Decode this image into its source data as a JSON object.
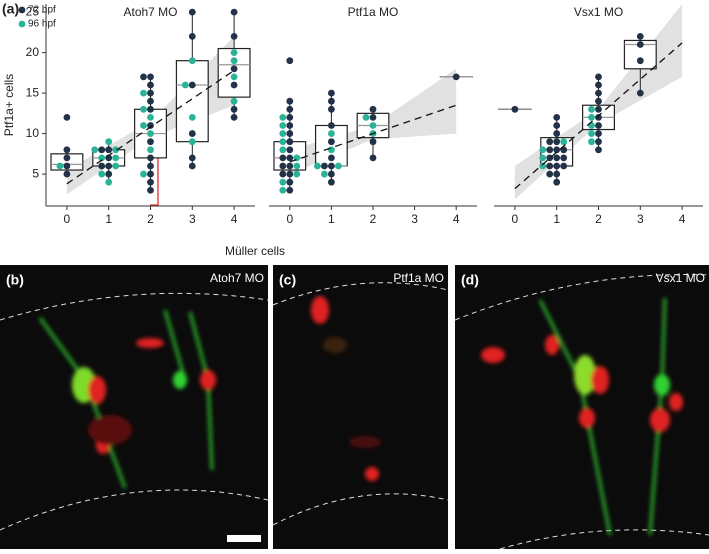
{
  "panel_label_a": "(a)",
  "chart_data": [
    {
      "type": "box",
      "title": "Atoh7 MO",
      "x_label": "Müller cells",
      "y_label": "Ptf1a+ cells",
      "xlim": [
        -0.5,
        4.5
      ],
      "xticks": [
        0,
        1,
        2,
        3,
        4
      ],
      "ylim": [
        1.8,
        26
      ],
      "yticks": [
        5,
        10,
        15,
        20,
        25
      ],
      "legend": "top-left",
      "boxes": [
        {
          "x": 0,
          "whislo": 5,
          "q1": 5.5,
          "median": 6.2,
          "q3": 7.5,
          "whishi": 8
        },
        {
          "x": 1,
          "whislo": 4,
          "q1": 6,
          "median": 7,
          "q3": 8,
          "whishi": 9
        },
        {
          "x": 2,
          "whislo": 3,
          "q1": 7,
          "median": 10,
          "q3": 13,
          "whishi": 17
        },
        {
          "x": 3,
          "whislo": 6,
          "q1": 9,
          "median": 16,
          "q3": 19,
          "whishi": 25
        },
        {
          "x": 4,
          "whislo": 12,
          "q1": 14.5,
          "median": 18.5,
          "q3": 20.5,
          "whishi": 25
        }
      ],
      "series": [
        {
          "name": "72 hpf",
          "color": "#223348",
          "x": [
            0,
            0,
            0,
            0,
            0,
            1,
            1,
            1,
            1,
            1,
            1,
            2,
            2,
            2,
            2,
            2,
            2,
            2,
            2,
            2,
            2,
            2,
            2,
            2,
            3,
            3,
            3,
            3,
            3,
            3,
            4,
            4,
            4,
            4,
            4,
            4
          ],
          "values": [
            5,
            6,
            7,
            12,
            8,
            5,
            6,
            6,
            7,
            8,
            8,
            3,
            4,
            5,
            6,
            7,
            9,
            11,
            13,
            14,
            15,
            16,
            17,
            17,
            6,
            7,
            25,
            22,
            16,
            10,
            12,
            13,
            16,
            25,
            22,
            18
          ]
        },
        {
          "name": "96 hpf",
          "color": "#2bb39a",
          "x": [
            0,
            1,
            1,
            1,
            1,
            1,
            1,
            1,
            1,
            2,
            2,
            2,
            2,
            2,
            2,
            2,
            3,
            3,
            3,
            3,
            4,
            4,
            4,
            4
          ],
          "values": [
            6,
            4,
            5,
            6,
            7,
            7,
            8,
            8,
            9,
            5,
            8,
            10,
            11,
            12,
            13,
            15,
            9,
            16,
            12,
            19,
            14,
            20,
            19,
            17
          ]
        }
      ],
      "fit": {
        "x": [
          0,
          4
        ],
        "values": [
          3.8,
          17.8
        ]
      },
      "band": {
        "x": [
          0,
          2,
          4
        ],
        "lower": [
          2.5,
          9.5,
          13.5
        ],
        "upper": [
          5.5,
          11.5,
          22
        ]
      }
    },
    {
      "type": "box",
      "title": "Ptf1a MO",
      "xlim": [
        -0.5,
        4.5
      ],
      "xticks": [
        0,
        1,
        2,
        3,
        4
      ],
      "ylim": [
        1.8,
        26
      ],
      "boxes": [
        {
          "x": 0,
          "whislo": 3,
          "q1": 5.5,
          "median": 7,
          "q3": 9,
          "whishi": 14
        },
        {
          "x": 1,
          "whislo": 4,
          "q1": 6,
          "median": 6,
          "q3": 11,
          "whishi": 15
        },
        {
          "x": 2,
          "whislo": 7,
          "q1": 9.5,
          "median": 11,
          "q3": 12.5,
          "whishi": 13
        },
        {
          "x": 4,
          "whislo": 17,
          "q1": 17,
          "median": 17,
          "q3": 17,
          "whishi": 17
        }
      ],
      "series": [
        {
          "color": "#223348",
          "x": [
            0,
            0,
            0,
            0,
            0,
            0,
            0,
            0,
            0,
            0,
            0,
            0,
            0,
            0,
            0,
            0,
            1,
            1,
            1,
            1,
            1,
            1,
            1,
            1,
            1,
            1,
            2,
            2,
            2,
            2,
            4
          ],
          "values": [
            3,
            4,
            5,
            5,
            6,
            6,
            7,
            7,
            8,
            9,
            10,
            11,
            12,
            13,
            14,
            19,
            4,
            5,
            6,
            6,
            7,
            9,
            11,
            13,
            14,
            15,
            7,
            9,
            12,
            13,
            17
          ]
        },
        {
          "color": "#2bb39a",
          "x": [
            0,
            0,
            0,
            0,
            0,
            0,
            0,
            0,
            0,
            0,
            1,
            1,
            1,
            1,
            1,
            2,
            2,
            2
          ],
          "values": [
            3,
            4,
            5,
            6,
            7,
            8,
            9,
            10,
            11,
            12,
            5,
            6,
            6,
            8,
            10,
            10,
            11,
            12
          ]
        }
      ],
      "fit": {
        "x": [
          0,
          4
        ],
        "values": [
          6.5,
          13.5
        ]
      },
      "band": {
        "x": [
          0,
          2,
          4
        ],
        "lower": [
          5,
          9.3,
          10
        ],
        "upper": [
          8,
          11,
          18
        ]
      }
    },
    {
      "type": "box",
      "title": "Vsx1 MO",
      "xlim": [
        -0.5,
        4.5
      ],
      "xticks": [
        0,
        1,
        2,
        3,
        4
      ],
      "ylim": [
        1.8,
        26
      ],
      "boxes": [
        {
          "x": 0,
          "whislo": 13,
          "q1": 13,
          "median": 13,
          "q3": 13,
          "whishi": 13
        },
        {
          "x": 1,
          "whislo": 4,
          "q1": 6,
          "median": 8,
          "q3": 9.5,
          "whishi": 12
        },
        {
          "x": 2,
          "whislo": 8,
          "q1": 10.5,
          "median": 12,
          "q3": 13.5,
          "whishi": 17
        },
        {
          "x": 3,
          "whislo": 15,
          "q1": 18,
          "median": 21,
          "q3": 21.5,
          "whishi": 22
        }
      ],
      "series": [
        {
          "color": "#223348",
          "x": [
            0,
            1,
            1,
            1,
            1,
            1,
            1,
            1,
            1,
            1,
            1,
            1,
            1,
            1,
            1,
            1,
            1,
            1,
            2,
            2,
            2,
            2,
            2,
            2,
            2,
            2,
            2,
            2,
            3,
            3,
            3,
            3
          ],
          "values": [
            13,
            4,
            5,
            5,
            6,
            6,
            6,
            7,
            7,
            7,
            8,
            8,
            8,
            9,
            9,
            10,
            11,
            12,
            8,
            9,
            10,
            11,
            12,
            13,
            14,
            15,
            16,
            17,
            15,
            19,
            21,
            22
          ]
        },
        {
          "color": "#2bb39a",
          "x": [
            1,
            1,
            1,
            1,
            2,
            2,
            2,
            2,
            2
          ],
          "values": [
            6,
            7,
            8,
            9,
            9,
            10,
            11,
            12,
            13
          ]
        }
      ],
      "fit": {
        "x": [
          0,
          4
        ],
        "values": [
          3.2,
          21.2
        ]
      },
      "band": {
        "x": [
          0,
          2,
          4
        ],
        "lower": [
          1.9,
          11.2,
          17
        ],
        "upper": [
          6,
          13,
          26
        ]
      }
    }
  ],
  "images": [
    {
      "label": "(b)",
      "title": "Atoh7 MO"
    },
    {
      "label": "(c)",
      "title": "Ptf1a MO"
    },
    {
      "label": "(d)",
      "title": "Vsx1 MO"
    }
  ]
}
